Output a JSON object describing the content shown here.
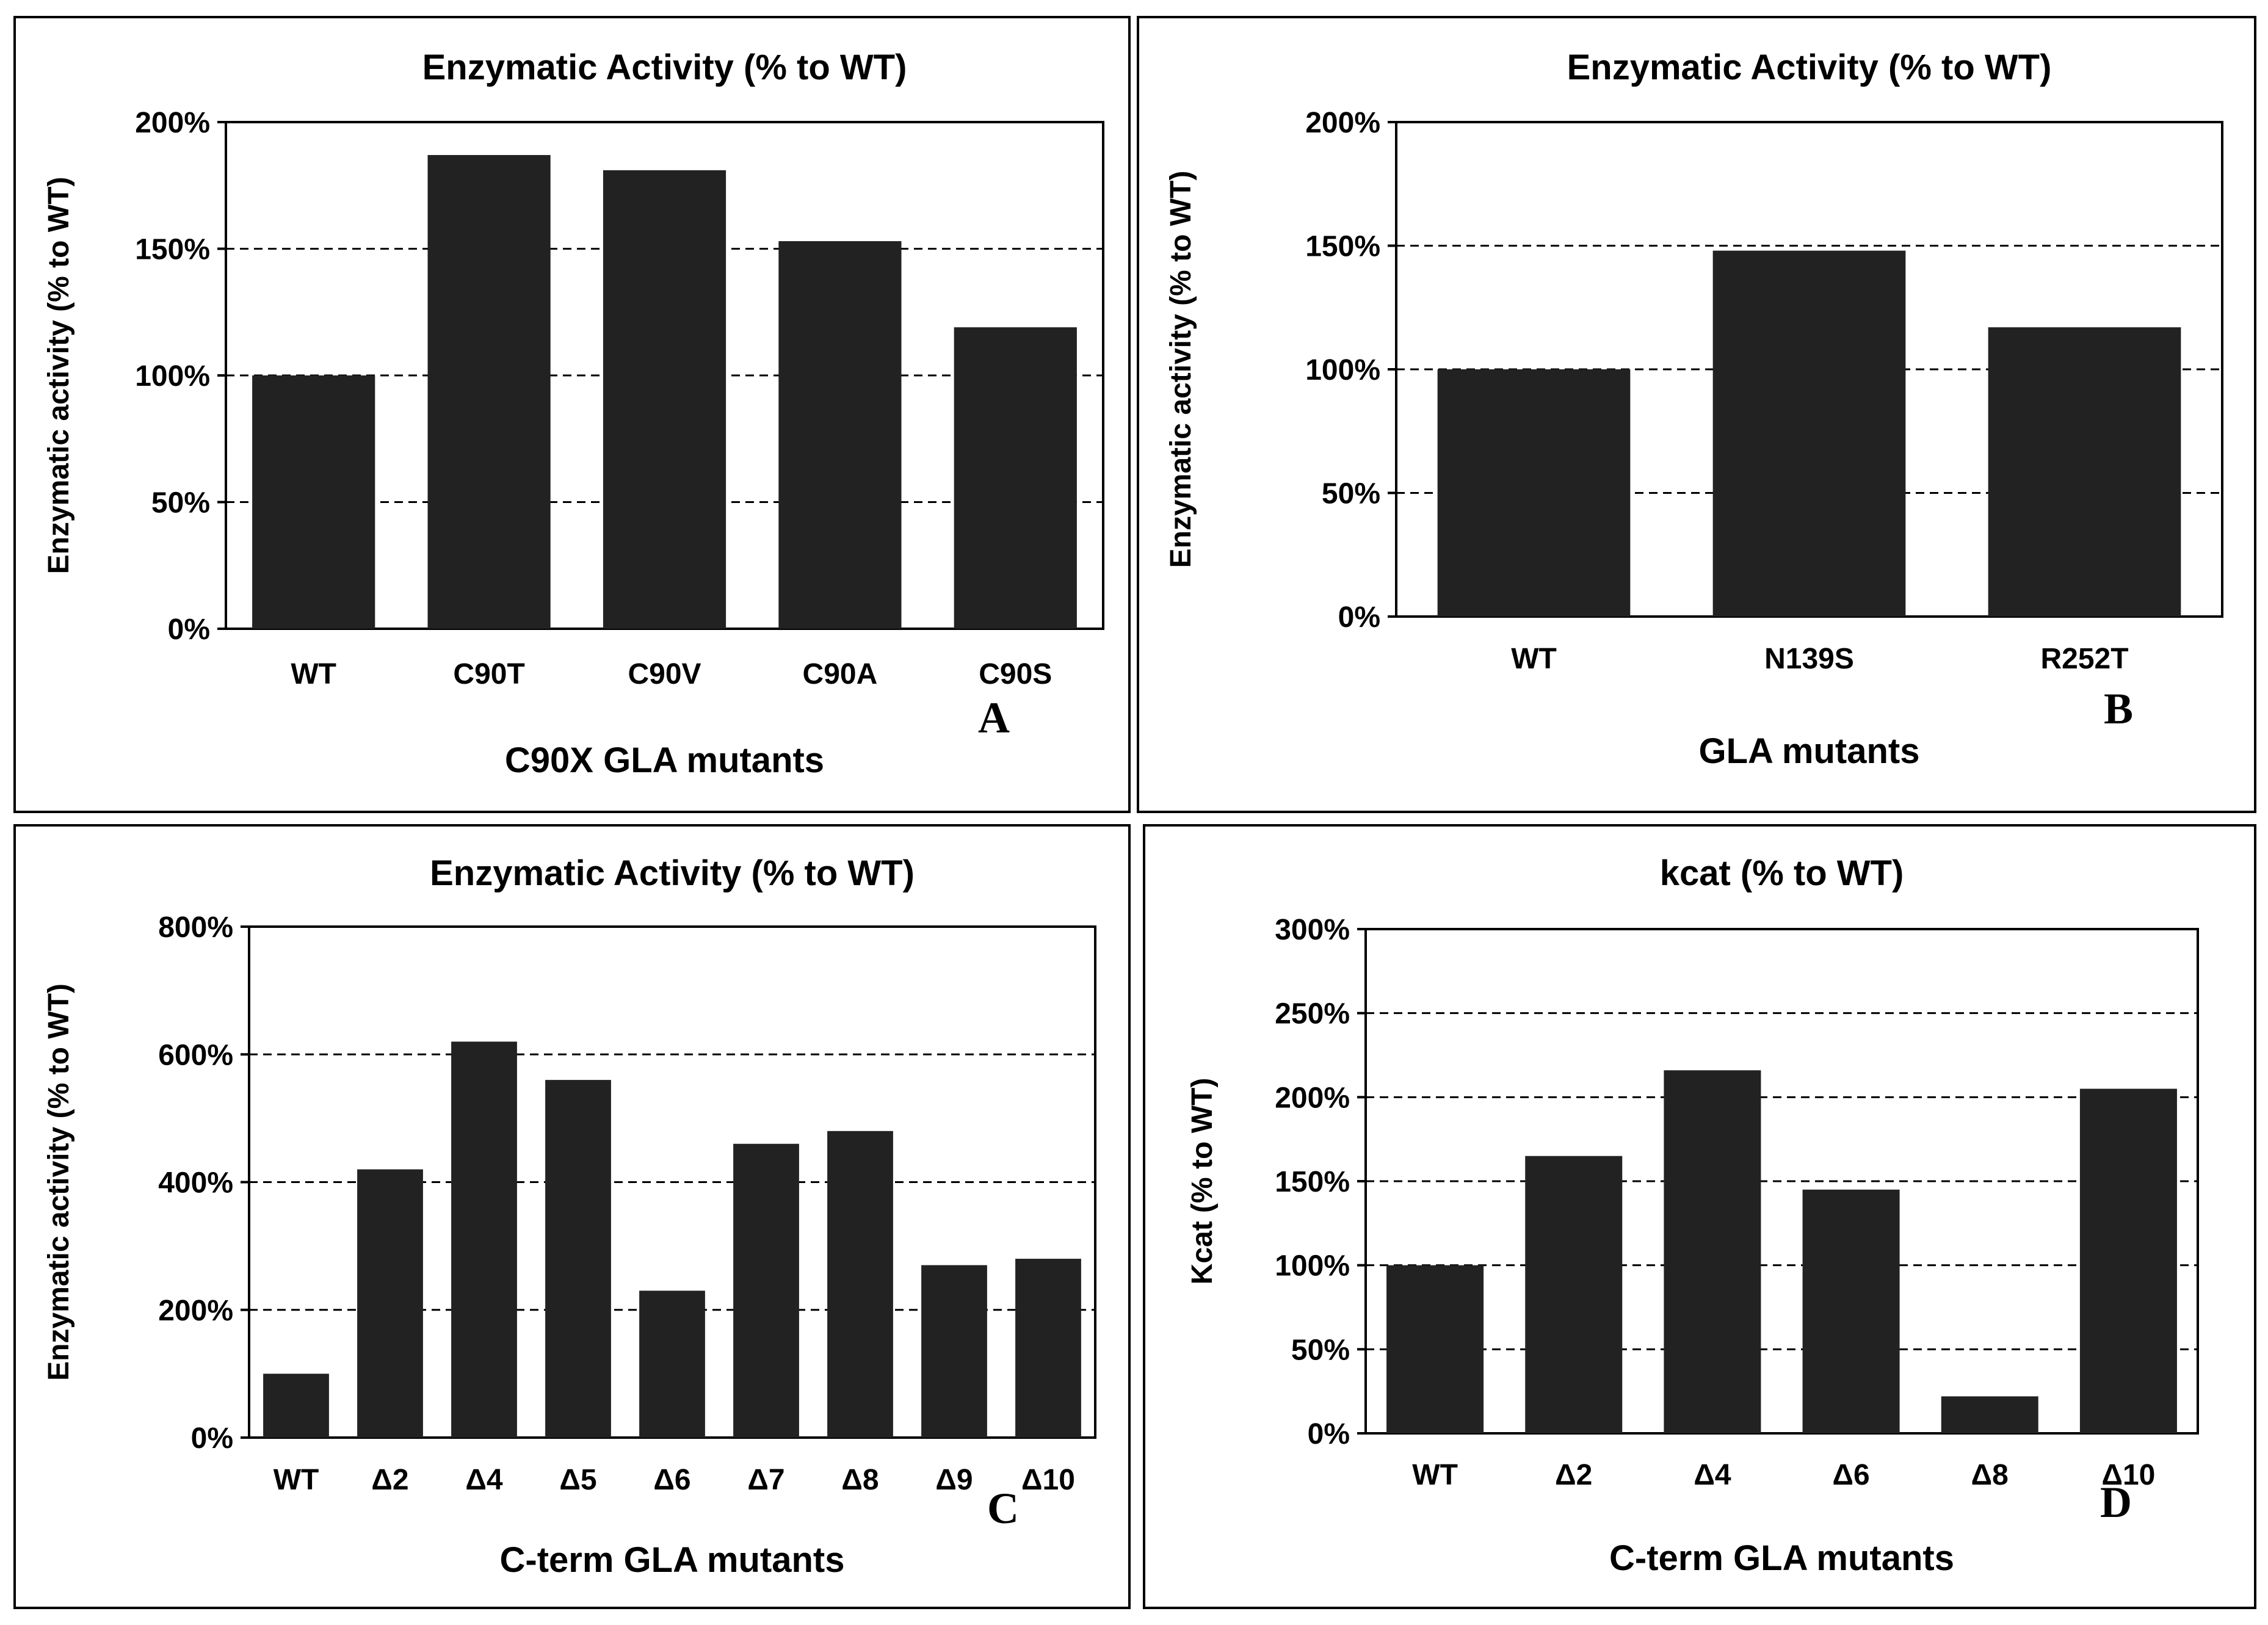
{
  "chart_data": [
    {
      "panel": "A",
      "type": "bar",
      "title": "Enzymatic Activity (% to WT)",
      "xlabel": "C90X GLA mutants",
      "ylabel": "Enzymatic activity (% to WT)",
      "categories": [
        "WT",
        "C90T",
        "C90V",
        "C90A",
        "C90S"
      ],
      "values": [
        100,
        187,
        181,
        153,
        119
      ],
      "ylim": [
        0,
        200
      ],
      "yticks": [
        0,
        50,
        100,
        150,
        200
      ],
      "ytick_labels": [
        "0%",
        "50%",
        "100%",
        "150%",
        "200%"
      ],
      "grid": "horizontal-dashed",
      "bar_color": "#222222"
    },
    {
      "panel": "B",
      "type": "bar",
      "title": "Enzymatic Activity (% to WT)",
      "xlabel": "GLA mutants",
      "ylabel": "Enzymatic activity (% to WT)",
      "categories": [
        "WT",
        "N139S",
        "R252T"
      ],
      "values": [
        100,
        148,
        117
      ],
      "ylim": [
        0,
        200
      ],
      "yticks": [
        0,
        50,
        100,
        150,
        200
      ],
      "ytick_labels": [
        "0%",
        "50%",
        "100%",
        "150%",
        "200%"
      ],
      "grid": "horizontal-dashed",
      "bar_color": "#222222"
    },
    {
      "panel": "C",
      "type": "bar",
      "title": "Enzymatic Activity (% to WT)",
      "xlabel": "C-term GLA mutants",
      "ylabel": "Enzymatic activity (% to WT)",
      "categories": [
        "WT",
        "Δ2",
        "Δ4",
        "Δ5",
        "Δ6",
        "Δ7",
        "Δ8",
        "Δ9",
        "Δ10"
      ],
      "values": [
        100,
        420,
        620,
        560,
        230,
        460,
        480,
        270,
        280
      ],
      "ylim": [
        0,
        800
      ],
      "yticks": [
        0,
        200,
        400,
        600,
        800
      ],
      "ytick_labels": [
        "0%",
        "200%",
        "400%",
        "600%",
        "800%"
      ],
      "grid": "horizontal-dashed",
      "bar_color": "#222222"
    },
    {
      "panel": "D",
      "type": "bar",
      "title": "kcat (% to WT)",
      "xlabel": "C-term GLA mutants",
      "ylabel": "Kcat (% to WT)",
      "categories": [
        "WT",
        "Δ2",
        "Δ4",
        "Δ6",
        "Δ8",
        "Δ10"
      ],
      "values": [
        100,
        165,
        216,
        145,
        22,
        205
      ],
      "ylim": [
        0,
        300
      ],
      "yticks": [
        0,
        50,
        100,
        150,
        200,
        250,
        300
      ],
      "ytick_labels": [
        "0%",
        "50%",
        "100%",
        "150%",
        "200%",
        "250%",
        "300%"
      ],
      "grid": "horizontal-dashed",
      "bar_color": "#222222"
    }
  ]
}
